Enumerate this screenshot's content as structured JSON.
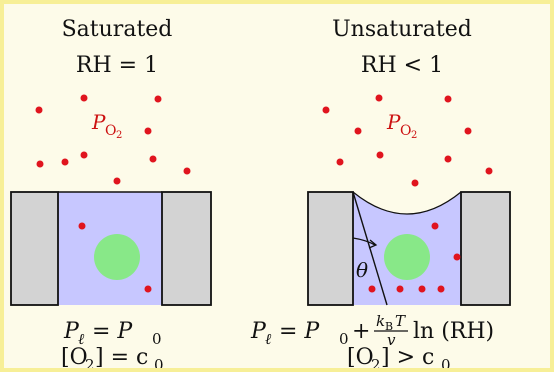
{
  "left_panel": {
    "title": "Saturated",
    "rh_label": "RH = 1",
    "gas_label": "P",
    "gas_sub": "O",
    "gas_subsub": "2",
    "eq1_lhs": "P",
    "eq1_sub": "ℓ",
    "eq1_rhs": "= P",
    "eq1_rhs_sub": "0",
    "eq2_lhs": "[O",
    "eq2_sub": "2",
    "eq2_rhs": "] = c",
    "eq2_rhs_sub": "0"
  },
  "right_panel": {
    "title": "Unsaturated",
    "rh_label": "RH < 1",
    "gas_label": "P",
    "gas_sub": "O",
    "gas_subsub": "2",
    "angle_label": "θ",
    "eq1_lhs": "P",
    "eq1_sub": "ℓ",
    "eq1_mid": "= P",
    "eq1_mid_sub": "0",
    "eq1_plus": "+",
    "frac_num": "k",
    "frac_num_sub": "B",
    "frac_num_T": "T",
    "frac_den": "v",
    "eq1_tail": "ln (RH)",
    "eq2_lhs": "[O",
    "eq2_sub": "2",
    "eq2_rhs": "] > c",
    "eq2_rhs_sub": "0"
  },
  "colors": {
    "frame_border": "#f7ef97",
    "frame_bg": "#fdfbe9",
    "wall_fill": "#d3d3d3",
    "liquid_fill": "#c7c7ff",
    "particle": "#e0141e",
    "cell": "#88e888"
  }
}
